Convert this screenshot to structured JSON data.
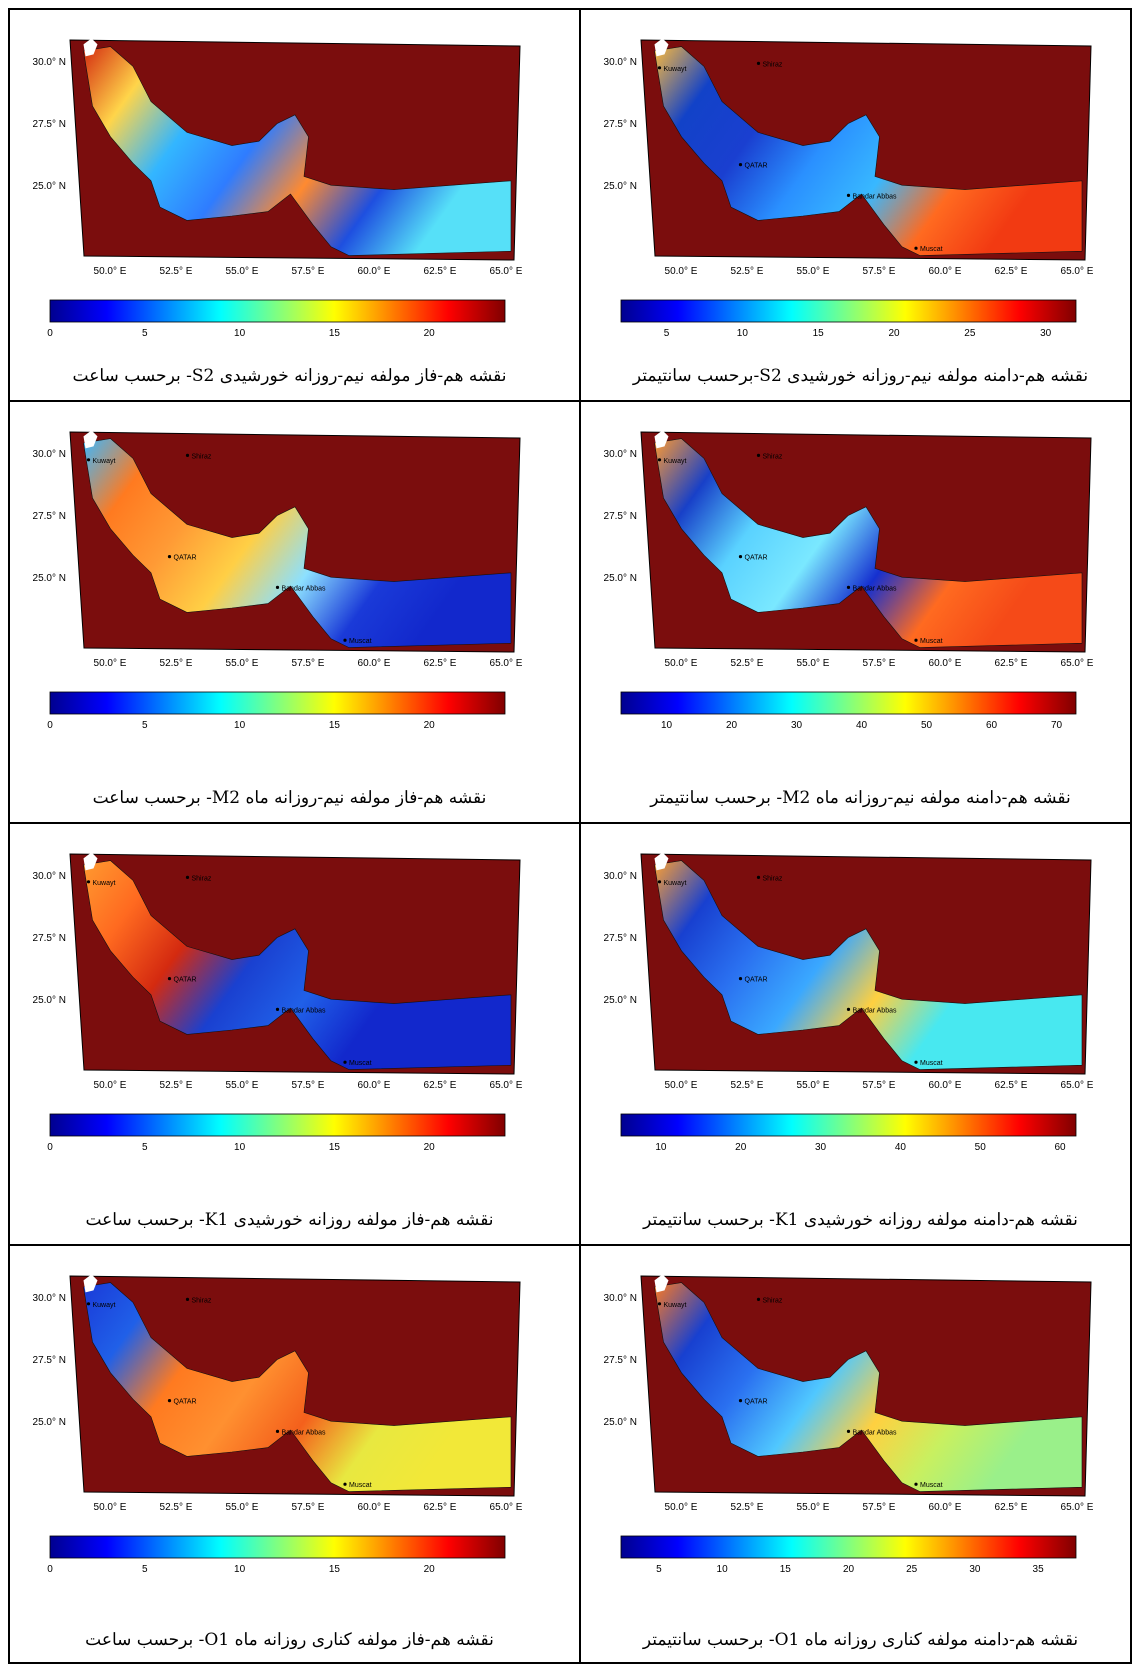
{
  "panels": [
    {
      "id": "s2-phase",
      "caption": "نقشه هم-فاز مولفه نیم-روزانه خورشیدی S2- برحسب ساعت",
      "gulf_colors": [
        "#d42a10",
        "#ffd54a",
        "#33b6ff",
        "#2f7cff",
        "#ff8a30",
        "#1e4fe0",
        "#56e0f8"
      ],
      "colorbar": {
        "min": 0,
        "max": 24,
        "ticks": [
          "0",
          "5",
          "10",
          "15",
          "20"
        ]
      },
      "lat_ticks": [
        "30.0° N",
        "27.5° N",
        "25.0° N"
      ],
      "lon_ticks": [
        "50.0° E",
        "52.5° E",
        "55.0° E",
        "57.5° E",
        "60.0° E",
        "62.5° E",
        "65.0° E"
      ],
      "place_labels": []
    },
    {
      "id": "s2-amplitude",
      "caption": "نقشه هم-دامنه مولفه نیم-روزانه خورشیدی S2-برحسب سانتیمتر",
      "gulf_colors": [
        "#ffbb3a",
        "#1242c8",
        "#1a3fd0",
        "#2a90ff",
        "#38b8ff",
        "#ff6a20",
        "#f23a12"
      ],
      "colorbar": {
        "min": 2,
        "max": 32,
        "ticks": [
          "5",
          "10",
          "15",
          "20",
          "25",
          "30"
        ]
      },
      "lat_ticks": [
        "30.0° N",
        "27.5° N",
        "25.0° N"
      ],
      "lon_ticks": [
        "50.0° E",
        "52.5° E",
        "55.0° E",
        "57.5° E",
        "60.0° E",
        "62.5° E",
        "65.0° E"
      ],
      "place_labels": [
        "Kuwayt",
        "Shiraz",
        "QATAR",
        "Bandar Abbas",
        "Muscat"
      ]
    },
    {
      "id": "m2-phase",
      "caption": "نقشه هم-فاز مولفه نیم-روزانه ماه M2- برحسب ساعت",
      "gulf_colors": [
        "#3cb8ff",
        "#ff7a20",
        "#ff9a35",
        "#ffcf45",
        "#8ce0ff",
        "#1a3ad8",
        "#1228cc"
      ],
      "colorbar": {
        "min": 0,
        "max": 24,
        "ticks": [
          "0",
          "5",
          "10",
          "15",
          "20"
        ]
      },
      "lat_ticks": [
        "30.0° N",
        "27.5° N",
        "25.0° N"
      ],
      "lon_ticks": [
        "50.0° E",
        "52.5° E",
        "55.0° E",
        "57.5° E",
        "60.0° E",
        "62.5° E",
        "65.0° E"
      ],
      "place_labels": [
        "Kuwayt",
        "Shiraz",
        "QATAR",
        "Bandar Abbas",
        "Muscat"
      ]
    },
    {
      "id": "m2-amplitude",
      "caption": "نقشه هم-دامنه مولفه نیم-روزانه ماه M2- برحسب سانتیمتر",
      "gulf_colors": [
        "#ff9a30",
        "#1840c8",
        "#5ad2ff",
        "#7ae8ff",
        "#1530d0",
        "#ff6a20",
        "#f54a18"
      ],
      "colorbar": {
        "min": 3,
        "max": 73,
        "ticks": [
          "10",
          "20",
          "30",
          "40",
          "50",
          "60",
          "70"
        ]
      },
      "lat_ticks": [
        "30.0° N",
        "27.5° N",
        "25.0° N"
      ],
      "lon_ticks": [
        "50.0° E",
        "52.5° E",
        "55.0° E",
        "57.5° E",
        "60.0° E",
        "62.5° E",
        "65.0° E"
      ],
      "place_labels": [
        "Kuwayt",
        "Shiraz",
        "QATAR",
        "Bandar Abbas",
        "Muscat"
      ]
    },
    {
      "id": "k1-phase",
      "caption": "نقشه هم-فاز مولفه روزانه خورشیدی K1- برحسب ساعت",
      "gulf_colors": [
        "#ff9a30",
        "#ff6a20",
        "#d42a10",
        "#1a40d0",
        "#2060e8",
        "#1228cc",
        "#1228cc"
      ],
      "colorbar": {
        "min": 0,
        "max": 24,
        "ticks": [
          "0",
          "5",
          "10",
          "15",
          "20"
        ]
      },
      "lat_ticks": [
        "30.0° N",
        "27.5° N",
        "25.0° N"
      ],
      "lon_ticks": [
        "50.0° E",
        "52.5° E",
        "55.0° E",
        "57.5° E",
        "60.0° E",
        "62.5° E",
        "65.0° E"
      ],
      "place_labels": [
        "Kuwayt",
        "Shiraz",
        "QATAR",
        "Bandar Abbas",
        "Muscat"
      ]
    },
    {
      "id": "k1-amplitude",
      "caption": "نقشه هم-دامنه مولفه روزانه خورشیدی K1- برحسب سانتیمتر",
      "gulf_colors": [
        "#ffa030",
        "#1840d0",
        "#2a70f0",
        "#3aa8ff",
        "#ffd040",
        "#48e8f0",
        "#48e8f0"
      ],
      "colorbar": {
        "min": 5,
        "max": 62,
        "ticks": [
          "10",
          "20",
          "30",
          "40",
          "50",
          "60"
        ]
      },
      "lat_ticks": [
        "30.0° N",
        "27.5° N",
        "25.0° N"
      ],
      "lon_ticks": [
        "50.0° E",
        "52.5° E",
        "55.0° E",
        "57.5° E",
        "60.0° E",
        "62.5° E",
        "65.0° E"
      ],
      "place_labels": [
        "Kuwayt",
        "Shiraz",
        "QATAR",
        "Bandar Abbas",
        "Muscat"
      ]
    },
    {
      "id": "o1-phase",
      "caption": "نقشه هم-فاز مولفه کناری روزانه ماه O1- برحسب ساعت",
      "gulf_colors": [
        "#1a3ad8",
        "#2060e8",
        "#ff7a20",
        "#ff9030",
        "#f4601c",
        "#e8e840",
        "#f2e838"
      ],
      "colorbar": {
        "min": 0,
        "max": 24,
        "ticks": [
          "0",
          "5",
          "10",
          "15",
          "20"
        ]
      },
      "lat_ticks": [
        "30.0° N",
        "27.5° N",
        "25.0° N"
      ],
      "lon_ticks": [
        "50.0° E",
        "52.5° E",
        "55.0° E",
        "57.5° E",
        "60.0° E",
        "62.5° E",
        "65.0° E"
      ],
      "place_labels": [
        "Kuwayt",
        "Shiraz",
        "QATAR",
        "Bandar Abbas",
        "Muscat"
      ]
    },
    {
      "id": "o1-amplitude",
      "caption": "نقشه هم-دامنه مولفه کناری روزانه ماه O1- برحسب سانتیمتر",
      "gulf_colors": [
        "#ff7a20",
        "#1840d0",
        "#2a70f0",
        "#50c8ff",
        "#ffd040",
        "#c8f060",
        "#9af08a"
      ],
      "colorbar": {
        "min": 2,
        "max": 38,
        "ticks": [
          "5",
          "10",
          "15",
          "20",
          "25",
          "30",
          "35"
        ]
      },
      "lat_ticks": [
        "30.0° N",
        "27.5° N",
        "25.0° N"
      ],
      "lon_ticks": [
        "50.0° E",
        "52.5° E",
        "55.0° E",
        "57.5° E",
        "60.0° E",
        "62.5° E",
        "65.0° E"
      ],
      "place_labels": [
        "Kuwayt",
        "Shiraz",
        "QATAR",
        "Bandar Abbas",
        "Muscat"
      ]
    }
  ],
  "colors": {
    "land": "#7b0d0d",
    "coast_white": "#ffffff",
    "jet": [
      "#00008f",
      "#0000ff",
      "#0080ff",
      "#00ffff",
      "#80ff80",
      "#ffff00",
      "#ff8000",
      "#ff0000",
      "#800000"
    ]
  }
}
